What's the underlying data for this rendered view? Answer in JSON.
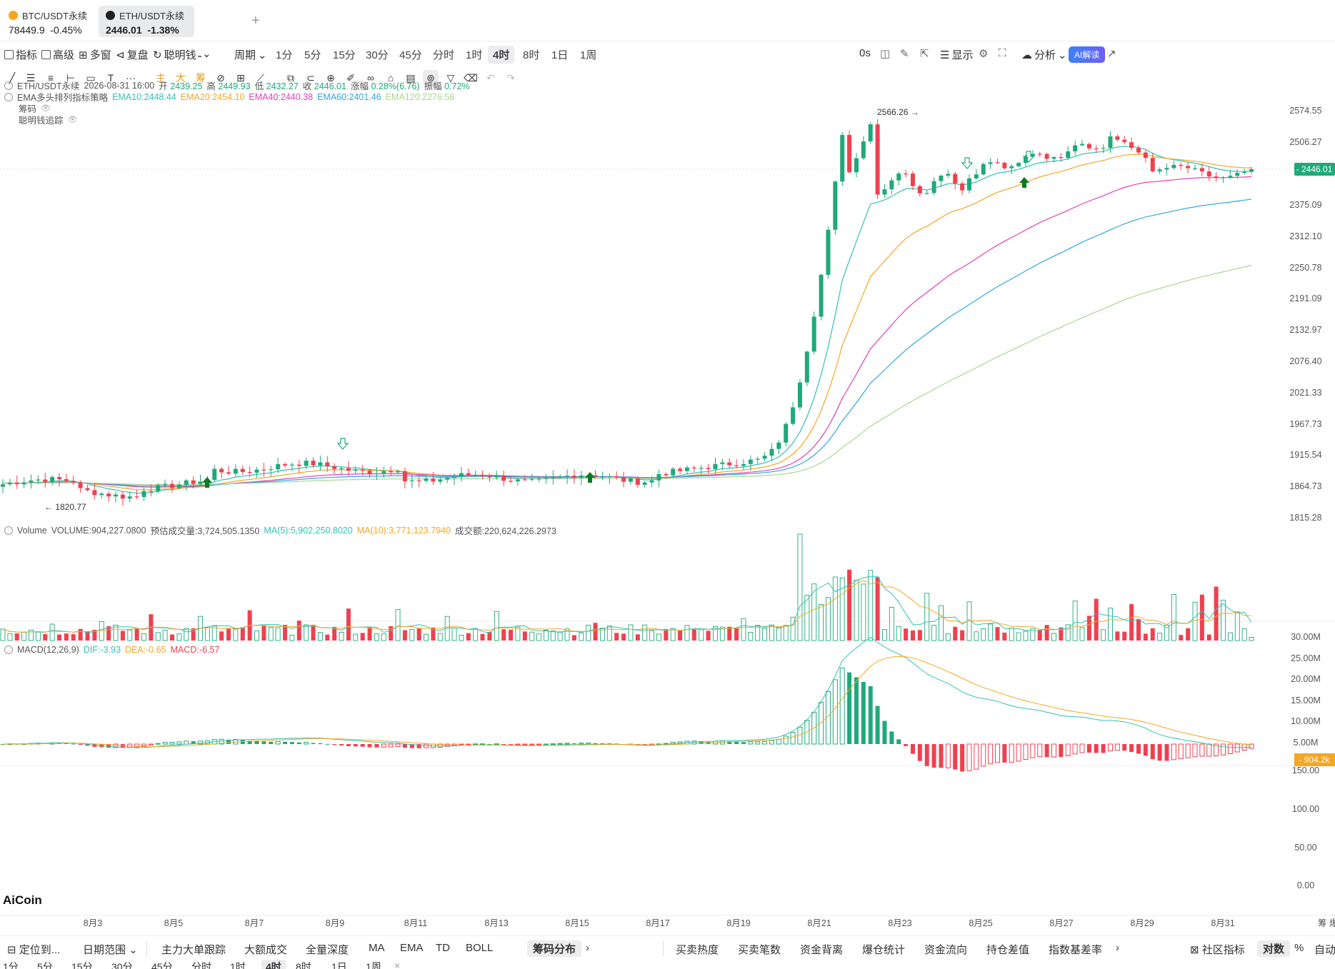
{
  "tabs": [
    {
      "name": "BTC/USDT永续",
      "price": "78449.9",
      "change": "-0.45%",
      "icon": "btc-coin-icon",
      "color": "#f7a51b"
    },
    {
      "name": "ETH/USDT永续",
      "price": "2446.01",
      "change": "-1.38%",
      "icon": "eth-coin-icon",
      "color": "#222222"
    }
  ],
  "add_tab": "+",
  "toolbar1": {
    "indicator": "指标",
    "advanced": "高级",
    "multi": "多窗",
    "replay": "复盘",
    "smart": "聪明钱",
    "period": "周期",
    "periods": [
      "1分",
      "5分",
      "15分",
      "30分",
      "45分",
      "分时",
      "1时",
      "4时",
      "8时",
      "1日",
      "1周"
    ],
    "selected_period": "4时",
    "timer": "0s",
    "display": "显示",
    "analysis": "分析",
    "ai": "AI解读"
  },
  "toolbar2": {
    "items": [
      "trend-line-icon",
      "parallel-lines-icon",
      "fib-icon",
      "horizontal-line-icon",
      "rectangle-icon",
      "text-tool-icon",
      "more-icon",
      "主",
      "大",
      "筹",
      "compare-icon",
      "ruler-icon",
      "measure-icon",
      "copy-icon",
      "magnet-icon",
      "zoom-icon",
      "brush-icon",
      "link-icon",
      "lock-icon",
      "layout-icon",
      "hide-icon",
      "filter-icon",
      "trash-icon",
      "undo-icon",
      "redo-icon"
    ],
    "more_label": "···"
  },
  "info": {
    "symbol": "ETH/USDT永续",
    "datetime": "2026-08-31 16:00",
    "open_label": "开",
    "open": "2439.25",
    "high_label": "高",
    "high": "2449.93",
    "low_label": "低",
    "low": "2432.27",
    "close_label": "收",
    "close": "2446.01",
    "chg_label": "涨幅",
    "chg": "0.28%(6.76)",
    "amp_label": "振幅",
    "amp": "0.72%",
    "ema_title": "EMA多头排列指标策略",
    "ema10": "EMA10:2448.44",
    "ema20": "EMA20:2454.10",
    "ema40": "EMA40:2440.38",
    "ema60": "EMA60:2401.46",
    "ema120": "EMA120:2276.56",
    "chip": "筹码",
    "smart_track": "聪明钱追踪"
  },
  "volume_info": {
    "title": "Volume",
    "volume": "VOLUME:904,227.0800",
    "est": "预估成交量:3,724,505.1350",
    "ma5": "MA(5):5,902,250.8020",
    "ma10": "MA(10):3,771,123.7940",
    "turnover": "成交额:220,624,226.2973"
  },
  "macd_info": {
    "title": "MACD(12,26,9)",
    "dif": "DIF:-3.93",
    "dea": "DEA:-0.65",
    "macd": "MACD:-6.57"
  },
  "price_axis": [
    "2574.55",
    "2506.27",
    "2446.01",
    "2375.09",
    "2312.10",
    "2250.78",
    "2191.09",
    "2132.97",
    "2076.40",
    "2021.33",
    "1967.73",
    "1915.54",
    "1864.73",
    "1815.28"
  ],
  "current_price": "2446.01",
  "volume_axis": [
    "30.00M",
    "25.00M",
    "20.00M",
    "15.00M",
    "10.00M",
    "5.00M"
  ],
  "volume_current": "904.2k",
  "macd_axis": [
    "150.00",
    "100.00",
    "50.00",
    "0.00"
  ],
  "date_axis": [
    "8月3",
    "8月5",
    "8月7",
    "8月9",
    "8月11",
    "8月13",
    "8月15",
    "8月17",
    "8月19",
    "8月21",
    "8月23",
    "8月25",
    "8月27",
    "8月29",
    "8月31"
  ],
  "high_mark": "2566.26 →",
  "low_mark": "← 1820.77",
  "logo": "AiCoin",
  "chip_side": "筹 爆",
  "colors": {
    "up": "#1fa97a",
    "down": "#f0404f",
    "ema10": "#33c2b5",
    "ema20": "#f5a623",
    "ema40": "#e040b8",
    "ema60": "#2fa8e0",
    "ema120": "#a8d88a",
    "ai": "#5b6bff"
  },
  "bottom1": {
    "locate": "定位到...",
    "range": "日期范围",
    "left_tabs": [
      "主力大单跟踪",
      "大额成交",
      "全量深度",
      "MA",
      "EMA",
      "TD",
      "BOLL",
      "筹码分布"
    ],
    "selected": "筹码分布",
    "right_tabs": [
      "买卖热度",
      "买卖笔数",
      "资金背离",
      "爆仓统计",
      "资金流向",
      "持仓差值",
      "指数基差率"
    ],
    "community": "社区指标",
    "log": "对数",
    "percent": "%",
    "auto": "自动"
  },
  "bottom2": [
    "1分",
    "5分",
    "15分",
    "30分",
    "45分",
    "分时",
    "1时",
    "4时",
    "8时",
    "1日",
    "1周",
    "×"
  ]
}
